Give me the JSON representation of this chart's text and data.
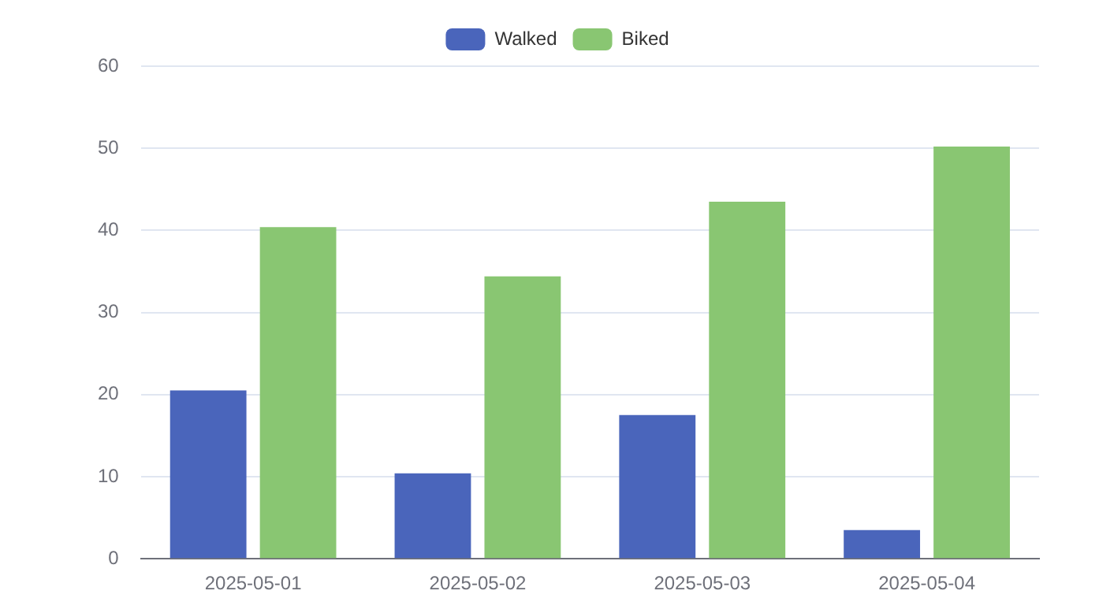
{
  "chart_data": {
    "type": "bar",
    "categories": [
      "2025-05-01",
      "2025-05-02",
      "2025-05-03",
      "2025-05-04"
    ],
    "series": [
      {
        "name": "Walked",
        "color": "#4a65bb",
        "values": [
          20.5,
          10.4,
          17.5,
          3.5
        ]
      },
      {
        "name": "Biked",
        "color": "#89c672",
        "values": [
          40.4,
          34.4,
          43.5,
          50.2
        ]
      }
    ],
    "ylim": [
      0,
      60
    ],
    "yticks": [
      0,
      10,
      20,
      30,
      40,
      50,
      60
    ],
    "grid": "y",
    "legend": "top"
  }
}
